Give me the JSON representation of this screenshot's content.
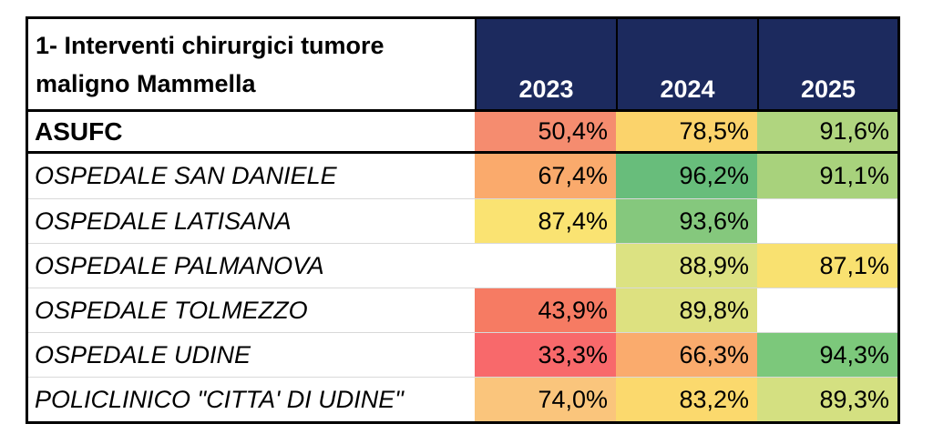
{
  "table": {
    "title": "1- Interventi chirurgici tumore maligno Mammella",
    "title_lines": [
      "1- Interventi chirurgici tumore",
      "maligno Mammella"
    ],
    "columns": [
      "2023",
      "2024",
      "2025"
    ],
    "header_bg": "#1C2A5E",
    "header_text_color": "#FFFFFF",
    "rows": [
      {
        "name": "ASUFC",
        "bold": true,
        "cells": [
          {
            "text": "50,4%",
            "bg": "#F58C6F"
          },
          {
            "text": "78,5%",
            "bg": "#FBD36B"
          },
          {
            "text": "91,6%",
            "bg": "#B0D57F"
          }
        ]
      },
      {
        "name": "OSPEDALE SAN DANIELE",
        "bold": false,
        "cells": [
          {
            "text": "67,4%",
            "bg": "#FAAA6C"
          },
          {
            "text": "96,2%",
            "bg": "#68BD7B"
          },
          {
            "text": "91,1%",
            "bg": "#A8D27C"
          }
        ]
      },
      {
        "name": "OSPEDALE LATISANA",
        "bold": false,
        "cells": [
          {
            "text": "87,4%",
            "bg": "#FAE372"
          },
          {
            "text": "93,6%",
            "bg": "#85C87D"
          },
          {
            "text": "",
            "bg": "#FFFFFF"
          }
        ]
      },
      {
        "name": "OSPEDALE PALMANOVA",
        "bold": false,
        "cells": [
          {
            "text": "",
            "bg": "#FFFFFF"
          },
          {
            "text": "88,9%",
            "bg": "#DCE282"
          },
          {
            "text": "87,1%",
            "bg": "#F9E170"
          }
        ]
      },
      {
        "name": "OSPEDALE TOLMEZZO",
        "bold": false,
        "cells": [
          {
            "text": "43,9%",
            "bg": "#F67B63"
          },
          {
            "text": "89,8%",
            "bg": "#DDE180"
          },
          {
            "text": "",
            "bg": "#FFFFFF"
          }
        ]
      },
      {
        "name": "OSPEDALE UDINE",
        "bold": false,
        "cells": [
          {
            "text": "33,3%",
            "bg": "#F8696B"
          },
          {
            "text": "66,3%",
            "bg": "#FAAB6D"
          },
          {
            "text": "94,3%",
            "bg": "#7CC87B"
          }
        ]
      },
      {
        "name": "POLICLINICO \"CITTA' DI UDINE\"",
        "bold": false,
        "cells": [
          {
            "text": "74,0%",
            "bg": "#FAC57C"
          },
          {
            "text": "83,2%",
            "bg": "#FBD96D"
          },
          {
            "text": "89,3%",
            "bg": "#D4E081"
          }
        ]
      }
    ]
  },
  "chart_data": {
    "type": "heatmap",
    "title": "1- Interventi chirurgici tumore maligno Mammella",
    "columns": [
      "2023",
      "2024",
      "2025"
    ],
    "unit": "%",
    "decimal_separator": ",",
    "color_scale": "red-yellow-green",
    "rows": [
      {
        "label": "ASUFC",
        "values": [
          50.4,
          78.5,
          91.6
        ]
      },
      {
        "label": "OSPEDALE SAN DANIELE",
        "values": [
          67.4,
          96.2,
          91.1
        ]
      },
      {
        "label": "OSPEDALE LATISANA",
        "values": [
          87.4,
          93.6,
          null
        ]
      },
      {
        "label": "OSPEDALE PALMANOVA",
        "values": [
          null,
          88.9,
          87.1
        ]
      },
      {
        "label": "OSPEDALE TOLMEZZO",
        "values": [
          43.9,
          89.8,
          null
        ]
      },
      {
        "label": "OSPEDALE UDINE",
        "values": [
          33.3,
          66.3,
          94.3
        ]
      },
      {
        "label": "POLICLINICO \"CITTA' DI UDINE\"",
        "values": [
          74.0,
          83.2,
          89.3
        ]
      }
    ]
  }
}
